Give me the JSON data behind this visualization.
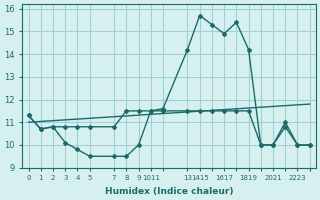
{
  "xlabel": "Humidex (Indice chaleur)",
  "background_color": "#d6f0f0",
  "grid_color": "#a0d0d0",
  "line_color": "#1a6b6b",
  "xlim": [
    -0.5,
    23.5
  ],
  "ylim": [
    9,
    16.2
  ],
  "yticks": [
    9,
    10,
    11,
    12,
    13,
    14,
    15,
    16
  ],
  "line1_x": [
    0,
    1,
    2,
    3,
    4,
    5,
    7,
    8,
    9,
    10,
    11,
    13,
    14,
    15,
    16,
    17,
    18,
    19,
    20,
    21,
    22,
    23
  ],
  "line1_y": [
    11.3,
    10.7,
    10.8,
    10.1,
    9.8,
    9.5,
    9.5,
    9.5,
    10.0,
    11.5,
    11.6,
    14.2,
    15.7,
    15.3,
    14.9,
    15.4,
    14.2,
    10.0,
    10.0,
    11.0,
    10.0,
    10.0
  ],
  "line2_x": [
    0,
    1,
    2,
    3,
    4,
    5,
    7,
    8,
    9,
    10,
    11,
    13,
    14,
    15,
    16,
    17,
    18,
    19,
    20,
    21,
    22,
    23
  ],
  "line2_y": [
    11.3,
    10.7,
    10.8,
    10.8,
    10.8,
    10.8,
    10.8,
    11.5,
    11.5,
    11.5,
    11.5,
    11.5,
    11.5,
    11.5,
    11.5,
    11.5,
    11.5,
    10.0,
    10.0,
    10.8,
    10.0,
    10.0
  ],
  "line3_x": [
    0,
    23
  ],
  "line3_y": [
    11.0,
    11.8
  ],
  "xtick_pos": [
    0,
    1,
    2,
    3,
    4,
    5,
    7,
    8,
    9,
    10,
    11,
    13,
    14,
    15,
    16,
    17,
    18,
    19,
    20,
    21,
    22,
    23
  ],
  "xtick_lab": [
    "0",
    "1",
    "2",
    "3",
    "4",
    "5",
    "7",
    "8",
    "9",
    "1011",
    "",
    "13",
    "1415",
    "",
    "1617",
    "",
    "1819",
    "",
    "2021",
    "",
    "2223",
    ""
  ]
}
